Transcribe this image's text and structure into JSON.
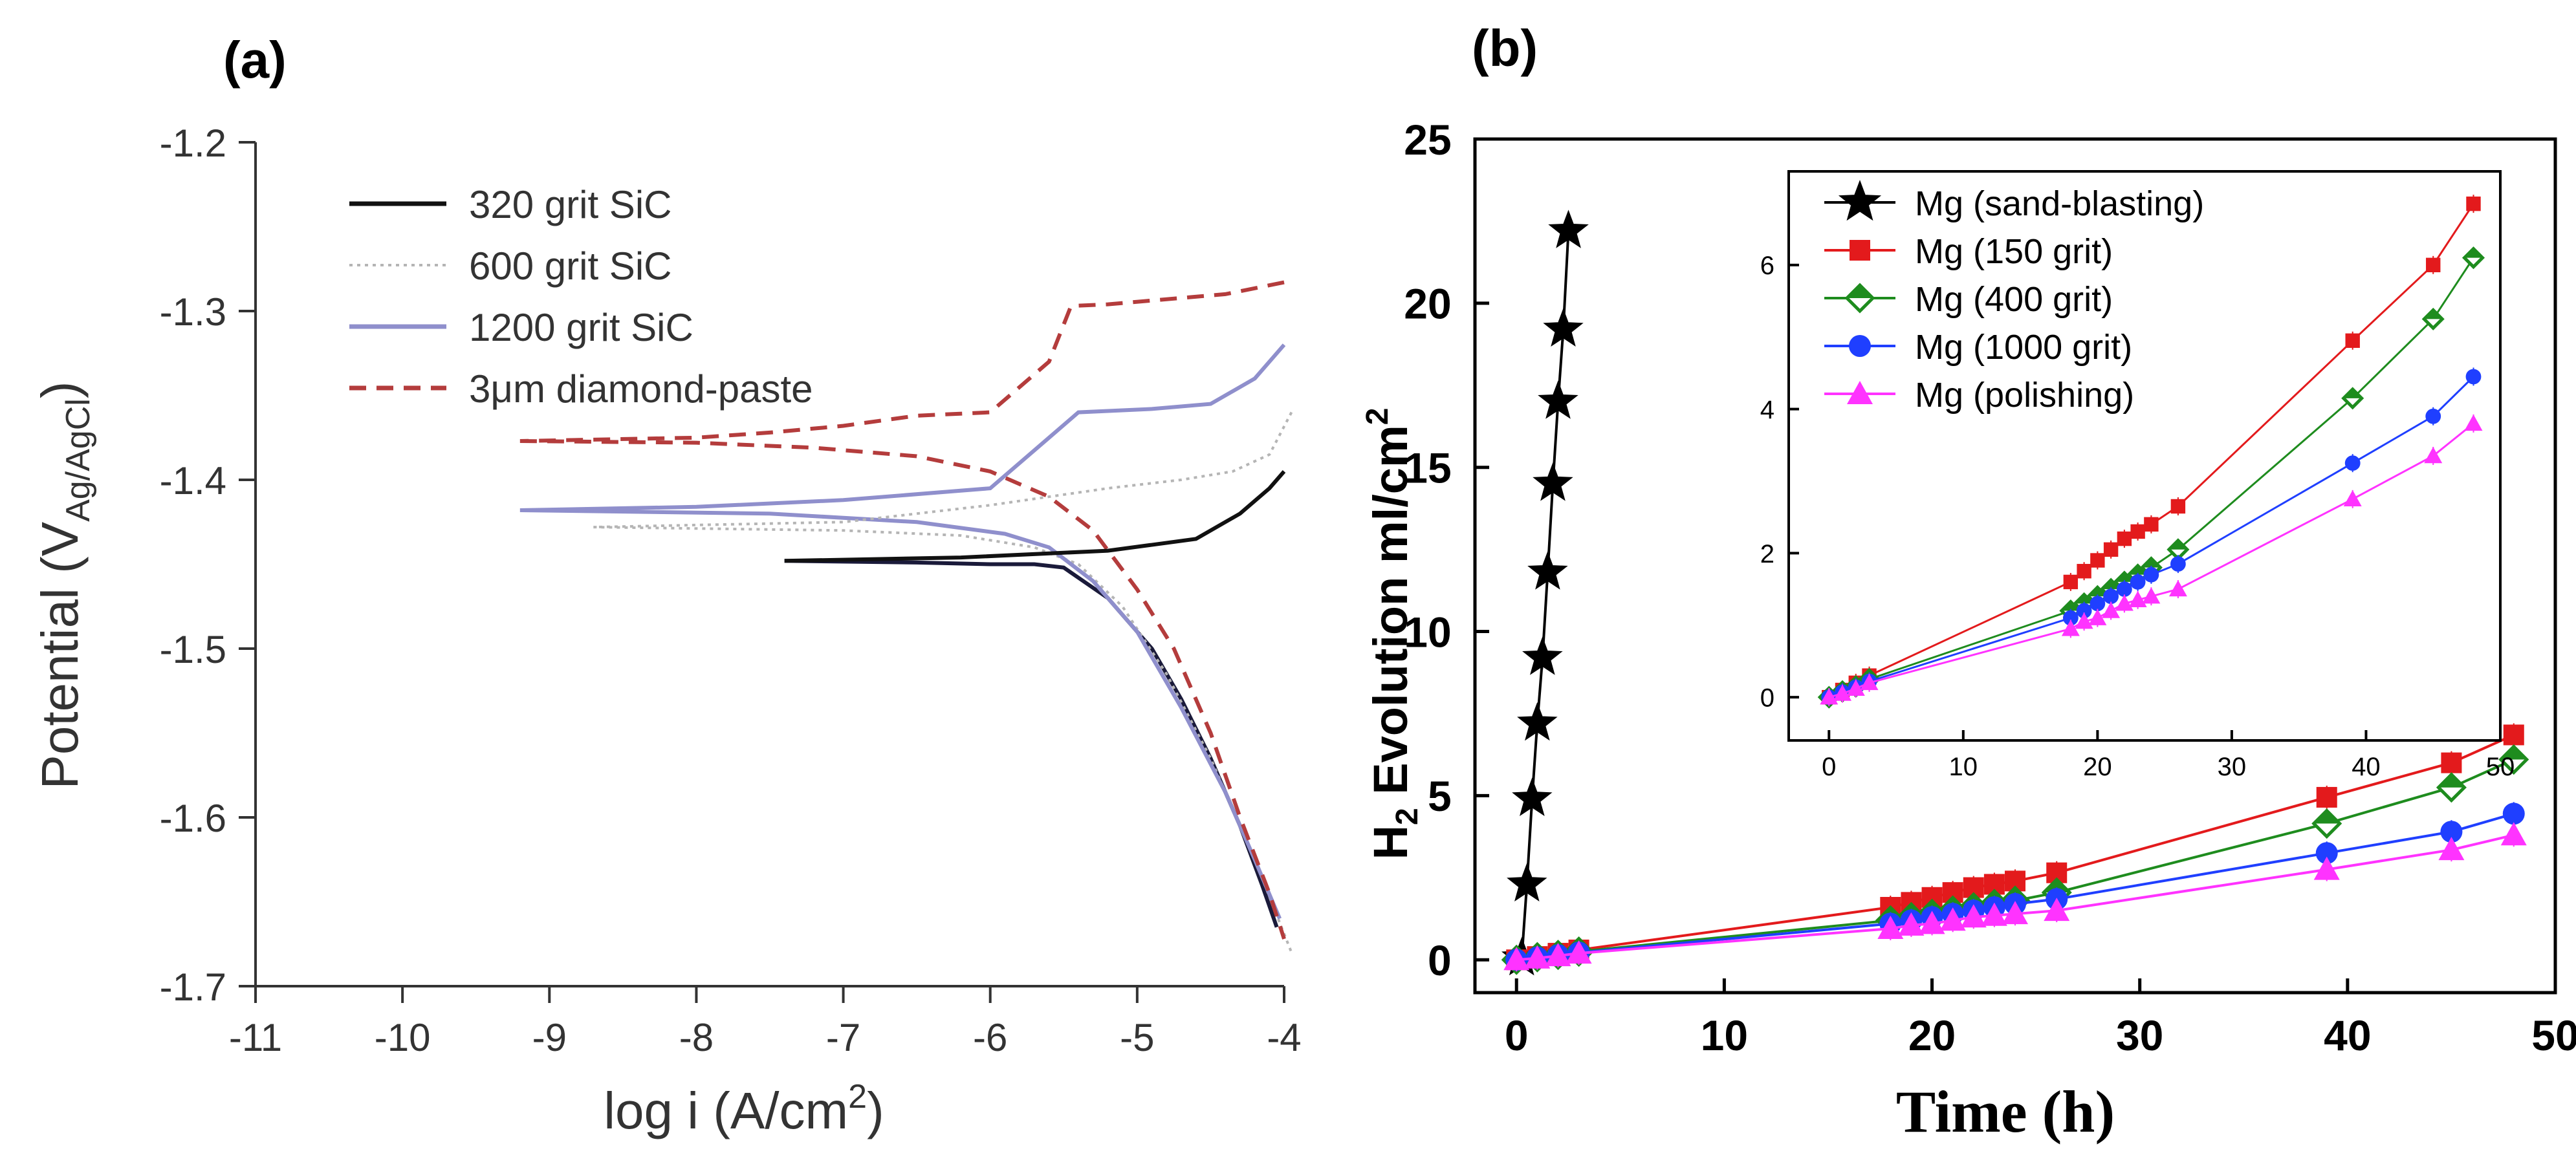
{
  "chart_data": [
    {
      "type": "line",
      "panel_label": "(a)",
      "xlabel": "log i (A/cm",
      "xlabel_sup": "2",
      "xlabel_close": ")",
      "ylabel": "Potential (V",
      "ylabel_sub": "Ag/AgCl",
      "ylabel_close": ")",
      "xlim": [
        -11,
        -4
      ],
      "ylim": [
        -1.7,
        -1.2
      ],
      "xticks": [
        "-11",
        "-10",
        "-9",
        "-8",
        "-7",
        "-6",
        "-5",
        "-4"
      ],
      "yticks": [
        "-1.7",
        "-1.6",
        "-1.5",
        "-1.4",
        "-1.3",
        "-1.2"
      ],
      "series": [
        {
          "name": "320 grit SiC",
          "color": "#111111",
          "style": "solid",
          "x": [
            -4.0,
            -4.1,
            -4.3,
            -4.6,
            -5.2,
            -6.2,
            -7.4
          ],
          "y": [
            -1.395,
            -1.405,
            -1.42,
            -1.435,
            -1.442,
            -1.446,
            -1.448
          ]
        },
        {
          "name": "600 grit SiC",
          "color": "#b5b5b5",
          "style": "dotted",
          "x": [
            -3.95,
            -4.1,
            -4.35,
            -4.7,
            -5.2,
            -6.0,
            -7.0,
            -8.7
          ],
          "y": [
            -1.36,
            -1.385,
            -1.395,
            -1.4,
            -1.405,
            -1.415,
            -1.425,
            -1.428
          ]
        },
        {
          "name": "1200 grit SiC",
          "color": "#8f8fcc",
          "style": "solid",
          "x": [
            -4.0,
            -4.2,
            -4.5,
            -4.9,
            -5.4,
            -5.6,
            -6.0,
            -7.0,
            -8.0,
            -9.2
          ],
          "y": [
            -1.32,
            -1.34,
            -1.355,
            -1.358,
            -1.36,
            -1.375,
            -1.405,
            -1.412,
            -1.416,
            -1.418
          ]
        },
        {
          "name": "3μm diamond-paste",
          "color": "#b43c3c",
          "style": "dashed",
          "x": [
            -4.0,
            -4.4,
            -4.8,
            -5.2,
            -5.45,
            -5.6,
            -6.0,
            -6.5,
            -7.0,
            -7.5,
            -8.0,
            -9.2
          ],
          "y": [
            -1.283,
            -1.29,
            -1.293,
            -1.296,
            -1.297,
            -1.33,
            -1.36,
            -1.362,
            -1.368,
            -1.372,
            -1.375,
            -1.377
          ]
        }
      ],
      "cathodic_branches": [
        {
          "color": "#1a1a3a",
          "style": "solid",
          "x": [
            -7.4,
            -6.5,
            -6.0,
            -5.7,
            -5.5,
            -5.2,
            -4.9,
            -4.7,
            -4.5,
            -4.3,
            -4.15,
            -4.05
          ],
          "y": [
            -1.448,
            -1.449,
            -1.45,
            -1.45,
            -1.452,
            -1.47,
            -1.5,
            -1.53,
            -1.565,
            -1.605,
            -1.64,
            -1.665
          ]
        },
        {
          "color": "#b5b5b5",
          "style": "dotted",
          "x": [
            -8.7,
            -7.0,
            -6.2,
            -5.7,
            -5.4,
            -5.1,
            -4.8,
            -4.5,
            -4.2,
            -3.95
          ],
          "y": [
            -1.428,
            -1.43,
            -1.433,
            -1.44,
            -1.45,
            -1.475,
            -1.515,
            -1.565,
            -1.625,
            -1.68
          ]
        },
        {
          "color": "#8f8fcc",
          "style": "solid",
          "x": [
            -9.2,
            -7.5,
            -6.5,
            -5.9,
            -5.6,
            -5.3,
            -5.0,
            -4.7,
            -4.4,
            -4.2,
            -4.03
          ],
          "y": [
            -1.418,
            -1.42,
            -1.425,
            -1.432,
            -1.44,
            -1.46,
            -1.49,
            -1.535,
            -1.585,
            -1.625,
            -1.66
          ]
        },
        {
          "color": "#b43c3c",
          "style": "dashed",
          "x": [
            -9.2,
            -8.0,
            -7.2,
            -6.5,
            -6.0,
            -5.6,
            -5.3,
            -5.0,
            -4.75,
            -4.5,
            -4.3,
            -4.1,
            -4.0
          ],
          "y": [
            -1.377,
            -1.378,
            -1.381,
            -1.386,
            -1.395,
            -1.41,
            -1.43,
            -1.465,
            -1.5,
            -1.55,
            -1.6,
            -1.645,
            -1.672
          ]
        }
      ]
    },
    {
      "type": "line",
      "panel_label": "(b)",
      "xlabel": "Time (h)",
      "ylabel": "H",
      "ylabel_sub": "2",
      "ylabel_rest": " Evolution ml/cm",
      "ylabel_sup": "2",
      "xlim": [
        -2,
        50
      ],
      "ylim": [
        -1,
        25
      ],
      "xticks": [
        "0",
        "10",
        "20",
        "30",
        "40",
        "50"
      ],
      "yticks": [
        "0",
        "5",
        "10",
        "15",
        "20",
        "25"
      ],
      "series": [
        {
          "name": "Mg (sand-blasting)",
          "color": "#000000",
          "marker": "star",
          "x": [
            0.25,
            0.5,
            0.75,
            1.0,
            1.25,
            1.5,
            1.75,
            2.0,
            2.25,
            2.5,
            2.75
          ],
          "y": [
            0.05,
            2.3,
            4.9,
            7.2,
            9.2,
            11.8,
            14.5,
            17.0,
            19.2,
            22.2,
            22.2
          ]
        },
        {
          "name": "Mg (150 grit)",
          "color": "#e31a1c",
          "marker": "square",
          "x": [
            0,
            1,
            2,
            3,
            18,
            19,
            20,
            21,
            22,
            23,
            24,
            26,
            39,
            45,
            48
          ],
          "y": [
            0,
            0.1,
            0.2,
            0.3,
            1.6,
            1.75,
            1.9,
            2.05,
            2.2,
            2.3,
            2.4,
            2.65,
            4.95,
            6.0,
            6.85
          ]
        },
        {
          "name": "Mg (400 grit)",
          "color": "#1e8c1e",
          "marker": "diamond",
          "x": [
            0,
            1,
            2,
            3,
            18,
            19,
            20,
            21,
            22,
            23,
            24,
            26,
            39,
            45,
            48
          ],
          "y": [
            0,
            0.08,
            0.15,
            0.25,
            1.2,
            1.3,
            1.4,
            1.5,
            1.6,
            1.7,
            1.8,
            2.05,
            4.15,
            5.25,
            6.1
          ]
        },
        {
          "name": "Mg (1000 grit)",
          "color": "#1f3fff",
          "marker": "circle",
          "x": [
            0,
            1,
            2,
            3,
            18,
            19,
            20,
            21,
            22,
            23,
            24,
            26,
            39,
            45,
            48
          ],
          "y": [
            0,
            0.07,
            0.14,
            0.22,
            1.1,
            1.2,
            1.3,
            1.4,
            1.5,
            1.6,
            1.7,
            1.85,
            3.25,
            3.9,
            4.45
          ]
        },
        {
          "name": "Mg (polishing)",
          "color": "#ff33ff",
          "marker": "triangle",
          "x": [
            0,
            1,
            2,
            3,
            18,
            19,
            20,
            21,
            22,
            23,
            24,
            26,
            39,
            45,
            48
          ],
          "y": [
            0,
            0.05,
            0.12,
            0.2,
            0.95,
            1.05,
            1.1,
            1.2,
            1.3,
            1.35,
            1.4,
            1.5,
            2.75,
            3.35,
            3.8
          ]
        }
      ],
      "inset": {
        "xlim": [
          -3,
          50
        ],
        "ylim": [
          -0.6,
          7.3
        ],
        "xticks": [
          "0",
          "10",
          "20",
          "30",
          "40",
          "50"
        ],
        "yticks": [
          "0",
          "2",
          "4",
          "6"
        ]
      }
    }
  ]
}
